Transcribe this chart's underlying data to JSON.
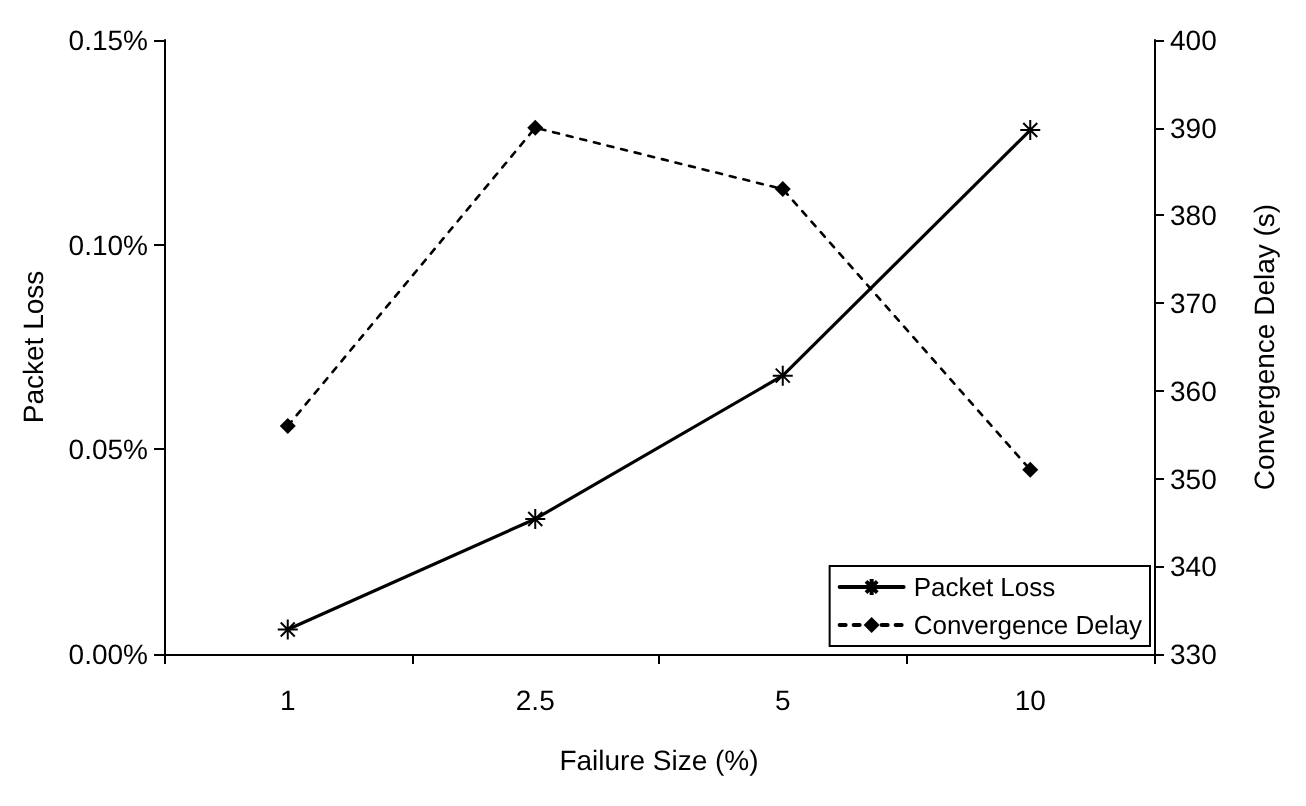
{
  "chart_data": {
    "type": "line",
    "xlabel": "Failure Size (%)",
    "ylabel": "Packet Loss",
    "y2label": "Convergence Delay (s)",
    "categories": [
      "1",
      "2.5",
      "5",
      "10"
    ],
    "series": [
      {
        "name": "Packet Loss",
        "color": "#000000",
        "values": [
          0.006,
          0.033,
          0.068,
          0.128
        ],
        "marker": "cross",
        "line_style": "solid"
      },
      {
        "name": "Convergence Delay",
        "color": "#000000",
        "values": [
          356,
          390,
          383,
          351
        ],
        "axis": "y2",
        "marker": "diamond",
        "line_style": "dotted"
      }
    ],
    "ylim": [
      0,
      0.15
    ],
    "yticks": [
      {
        "value": 0,
        "label": "0.00%"
      },
      {
        "value": 0.05,
        "label": "0.05%"
      },
      {
        "value": 0.1,
        "label": "0.10%"
      },
      {
        "value": 0.15,
        "label": "0.15%"
      }
    ],
    "y2lim": [
      330,
      400
    ],
    "y2ticks": [
      330,
      340,
      350,
      360,
      370,
      380,
      390,
      400
    ],
    "grid": false,
    "legend": "bottom right"
  }
}
